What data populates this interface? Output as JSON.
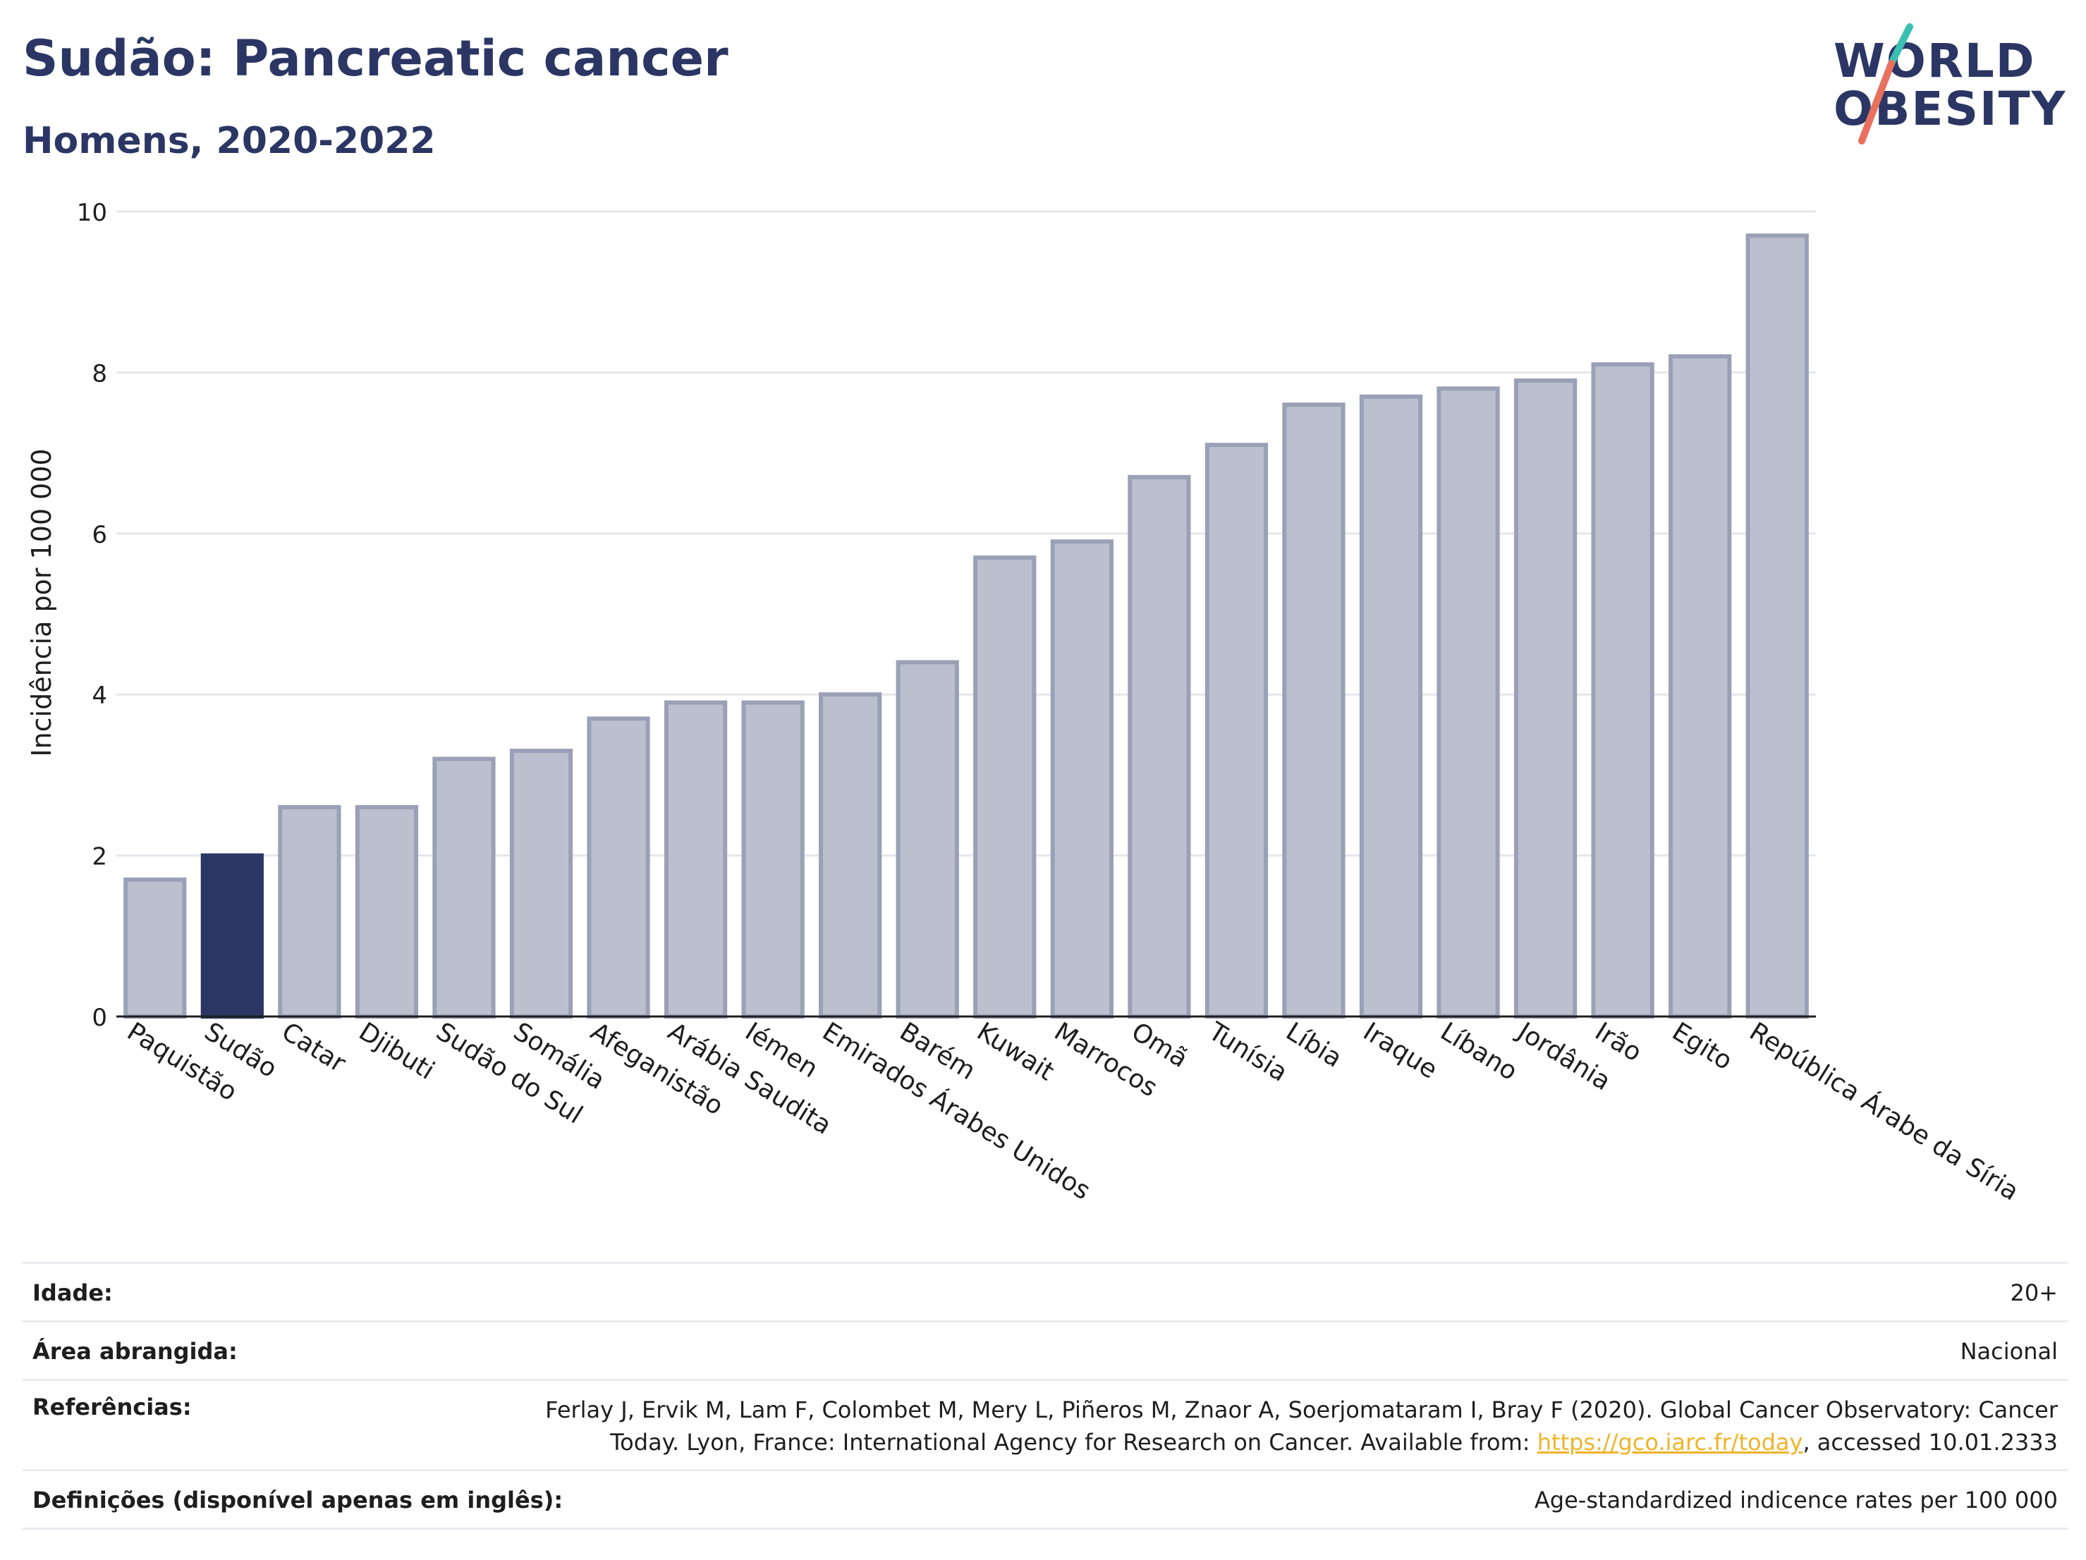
{
  "header": {
    "title": "Sudão: Pancreatic cancer",
    "subtitle": "Homens, 2020-2022"
  },
  "logo": {
    "line1": "WORLD",
    "line2": "OBESITY"
  },
  "colors": {
    "highlight": "#2b3664",
    "bar": "#bcc0ce",
    "bar_border": "#9aa0b6",
    "grid": "#e6e6ec",
    "title": "#2b3664",
    "logo_teal": "#3bbfb2",
    "logo_coral": "#e8705f"
  },
  "chart_data": {
    "type": "bar",
    "ylabel": "Incidência por 100 000",
    "ylim": [
      0,
      10
    ],
    "yticks": [
      0,
      2,
      4,
      6,
      8,
      10
    ],
    "grid": true,
    "highlight_category": "Sudão",
    "categories": [
      "Paquistão",
      "Sudão",
      "Catar",
      "Djibuti",
      "Sudão do Sul",
      "Somália",
      "Afeganistão",
      "Arábia Saudita",
      "Iémen",
      "Emirados Árabes Unidos",
      "Barém",
      "Kuwait",
      "Marrocos",
      "Omã",
      "Tunísia",
      "Líbia",
      "Iraque",
      "Líbano",
      "Jordânia",
      "Irão",
      "Egito",
      "República Árabe da Síria"
    ],
    "values": [
      1.7,
      2.0,
      2.6,
      2.6,
      3.2,
      3.3,
      3.7,
      3.9,
      3.9,
      4.0,
      4.4,
      5.7,
      5.9,
      6.7,
      7.1,
      7.6,
      7.7,
      7.8,
      7.9,
      8.1,
      8.2,
      9.7
    ]
  },
  "info": {
    "age_label": "Idade:",
    "age_value": "20+",
    "area_label": "Área abrangida:",
    "area_value": "Nacional",
    "ref_label": "Referências:",
    "ref_line1": "Ferlay J, Ervik M, Lam F, Colombet M, Mery L, Piñeros M, Znaor A, Soerjomataram I, Bray F (2020). Global Cancer Observatory: Cancer",
    "ref_line2_pre": "Today. Lyon, France: International Agency for Research on Cancer. Available from: ",
    "ref_link": "https://gco.iarc.fr/today",
    "ref_line2_post": ", accessed 10.01.2333",
    "def_label": "Definições (disponível apenas em inglês):",
    "def_value": "Age-standardized indicence rates per 100 000"
  }
}
